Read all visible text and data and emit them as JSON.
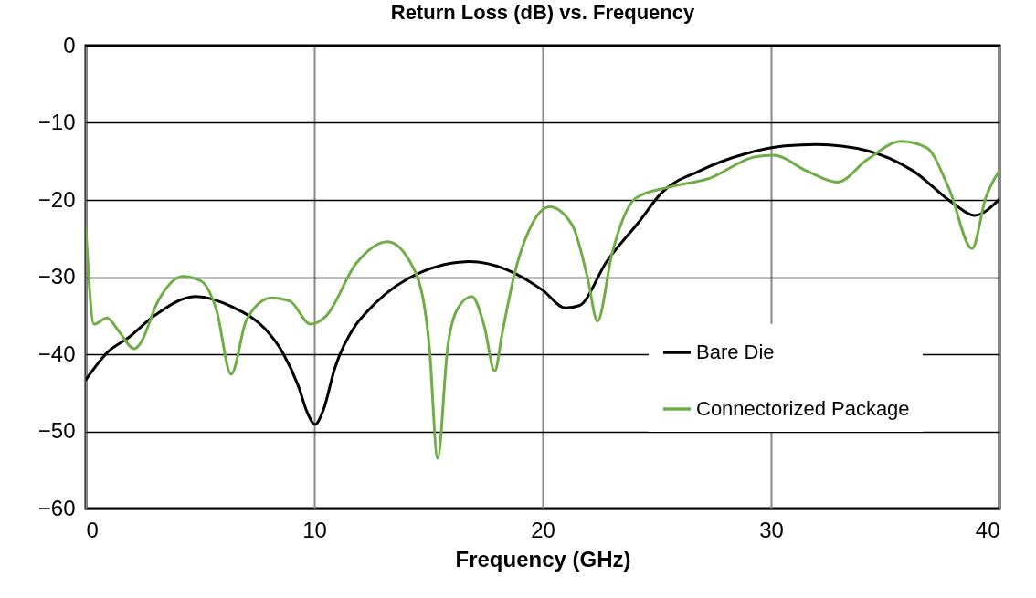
{
  "chart_data": {
    "type": "line",
    "title": "Return Loss (dB) vs. Frequency",
    "xlabel": "Frequency (GHz)",
    "xlim": [
      0,
      40
    ],
    "xticks": [
      0,
      10,
      20,
      30,
      40
    ],
    "ylim": [
      -60,
      0
    ],
    "yticks": [
      -60,
      -50,
      -40,
      -30,
      -20,
      -10,
      0
    ],
    "grid": true,
    "legend": "bottom right",
    "line_style": "solid",
    "marker": "none",
    "series": [
      {
        "name": "Bare Die",
        "color": "#000000",
        "x": [
          0,
          1,
          1.84,
          3,
          4.8,
          6.5,
          7.84,
          8.64,
          9.3,
          9.7,
          10.04,
          10.4,
          10.9,
          11.84,
          12.24,
          14.1,
          16.8,
          18.4,
          20,
          21,
          21.6,
          22.8,
          24.2,
          25.2,
          26.9,
          28.9,
          30.6,
          32,
          34.2,
          36.2,
          38,
          38.9,
          40
        ],
        "values": [
          -43.3,
          -39.6,
          -37.9,
          -35,
          -32.5,
          -34,
          -36.7,
          -39.9,
          -44.1,
          -47.6,
          -49.1,
          -47.2,
          -41.8,
          -36.1,
          -34.7,
          -30.2,
          -28,
          -29,
          -31.7,
          -34,
          -33.7,
          -28,
          -22.9,
          -19.1,
          -16.2,
          -14,
          -13,
          -12.8,
          -13.6,
          -16.2,
          -20.5,
          -22,
          -19.9
        ]
      },
      {
        "name": "Connectorized Package",
        "color": "#70ad47",
        "x": [
          0,
          0.36,
          0.92,
          1.44,
          2.12,
          2.36,
          3.16,
          4.24,
          5.04,
          5.72,
          6.36,
          7.04,
          8.12,
          8.92,
          9.84,
          10.5,
          11.84,
          13.2,
          14.4,
          15.04,
          15.4,
          15.84,
          16.24,
          16.9,
          17.44,
          17.9,
          18.24,
          18.8,
          19.44,
          20.3,
          21.3,
          21.96,
          22.4,
          23.04,
          24.1,
          25.6,
          27.3,
          29.3,
          30.1,
          31.6,
          32.9,
          34.2,
          35.7,
          36.8,
          37.8,
          38.8,
          39.4,
          40
        ],
        "values": [
          -23.7,
          -36.1,
          -35.3,
          -37,
          -39.3,
          -38.7,
          -33.1,
          -29.9,
          -30.5,
          -34.3,
          -42.6,
          -35.5,
          -32.7,
          -33.1,
          -36.1,
          -35.1,
          -28.2,
          -25.4,
          -29.2,
          -39.1,
          -53.5,
          -39.1,
          -34.3,
          -32.5,
          -36.3,
          -42.2,
          -37.1,
          -29.2,
          -23.7,
          -20.9,
          -23.3,
          -30,
          -35.7,
          -26.9,
          -19.7,
          -18.3,
          -17.2,
          -14.4,
          -14.2,
          -16.3,
          -17.7,
          -14.8,
          -12.4,
          -13.2,
          -18.6,
          -26.3,
          -19.7,
          -16.2
        ]
      }
    ]
  }
}
